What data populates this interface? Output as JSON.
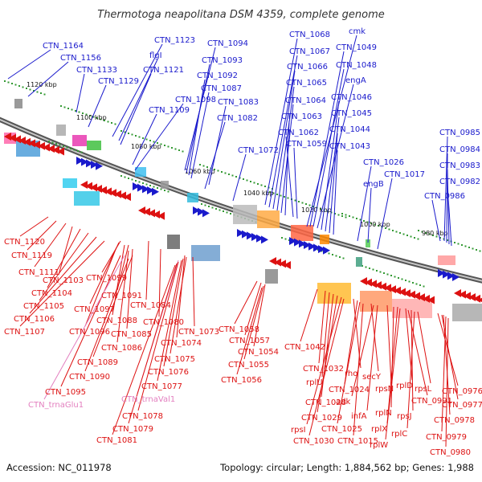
{
  "title": "Thermotoga neapolitana DSM 4359, complete genome",
  "footer": {
    "accession": "Accession: NC_011978",
    "summary": "Topology: circular; Length: 1,884,562 bp; Genes: 1,988"
  },
  "colors": {
    "forward": "#1a1acc",
    "reverse": "#dd1111",
    "rna": "#e37fbf",
    "backbone": "#777777"
  },
  "scale_labels": [
    "1120 kbp",
    "1100 kbp",
    "1080 kbp",
    "1060 kbp",
    "1040 kbp",
    "1020 kbp",
    "1000 kbp",
    "980 kbp"
  ],
  "top_labels": [
    "CTN_1164",
    "CTN_1156",
    "CTN_1133",
    "CTN_1129",
    "CTN_1123",
    "flgI",
    "CTN_1121",
    "CTN_1098",
    "CTN_1109",
    "CTN_1094",
    "CTN_1093",
    "CTN_1092",
    "CTN_1087",
    "CTN_1083",
    "CTN_1082",
    "CTN_1072",
    "CTN_1068",
    "CTN_1067",
    "CTN_1066",
    "CTN_1065",
    "CTN_1064",
    "CTN_1063",
    "CTN_1062",
    "CTN_1059",
    "cmk",
    "CTN_1049",
    "CTN_1048",
    "engA",
    "CTN_1046",
    "CTN_1045",
    "CTN_1044",
    "CTN_1043",
    "CTN_1026",
    "engB",
    "CTN_1017",
    "CTN_0985",
    "CTN_0984",
    "CTN_0983",
    "CTN_0982",
    "CTN_0986"
  ],
  "bottom_labels": [
    "CTN_1120",
    "CTN_1119",
    "CTN_1111",
    "CTN_1103",
    "CTN_1104",
    "CTN_1105",
    "CTN_1106",
    "CTN_1107",
    "CTN_1099",
    "CTN_1097",
    "CTN_1091",
    "CTN_1088",
    "CTN_1096",
    "CTN_1085",
    "CTN_1086",
    "CTN_1084",
    "CTN_1080",
    "CTN_1089",
    "CTN_1090",
    "CTN_1095",
    "CTN_trnaGlu1",
    "CTN_1074",
    "CTN_1075",
    "CTN_1073",
    "CTN_1076",
    "CTN_1077",
    "CTN_trnaVal1",
    "CTN_1078",
    "CTN_1079",
    "CTN_1081",
    "CTN_1058",
    "CTN_1057",
    "CTN_1054",
    "CTN_1055",
    "CTN_1056",
    "CTN_1042",
    "CTN_1032",
    "rplU",
    "CTN_1028",
    "CTN_1029",
    "rpsI",
    "CTN_1030",
    "rho",
    "CTN_1024",
    "CTN_1025",
    "CTN_1015",
    "secY",
    "adk",
    "infA",
    "rpsN",
    "rplN",
    "rplX",
    "rplW",
    "rplD",
    "CTN_0991",
    "rpsJ",
    "rplC",
    "rpsL",
    "CTN_0976",
    "CTN_0977",
    "CTN_0978",
    "CTN_0979",
    "CTN_0980"
  ]
}
